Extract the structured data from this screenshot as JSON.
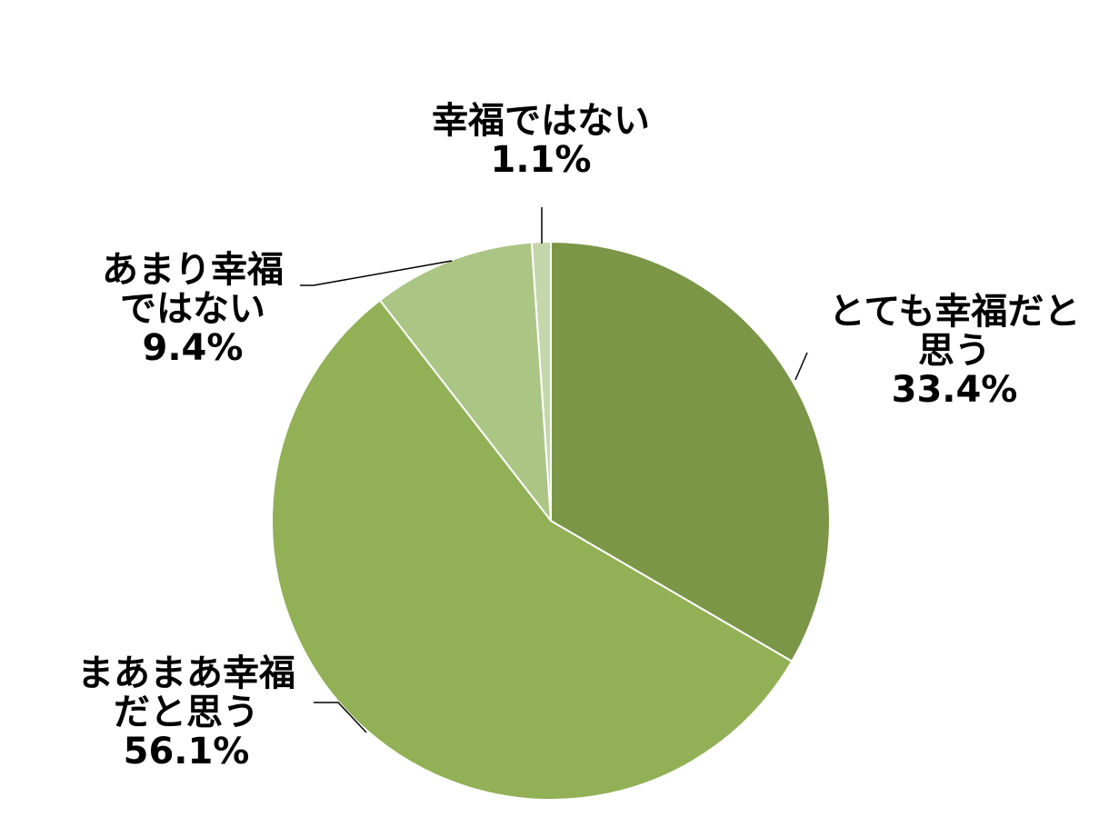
{
  "chart_data": {
    "type": "pie",
    "categories": [
      "とても幸福だと思う",
      "まあまあ幸福だと思う",
      "あまり幸福ではない",
      "幸福ではない"
    ],
    "values": [
      33.4,
      56.1,
      9.4,
      1.1
    ],
    "value_labels": [
      "33.4%",
      "56.1%",
      "9.4%",
      "1.1%"
    ],
    "colors": [
      "#7a9646",
      "#92b056",
      "#abc585",
      "#c4d7ab"
    ]
  }
}
